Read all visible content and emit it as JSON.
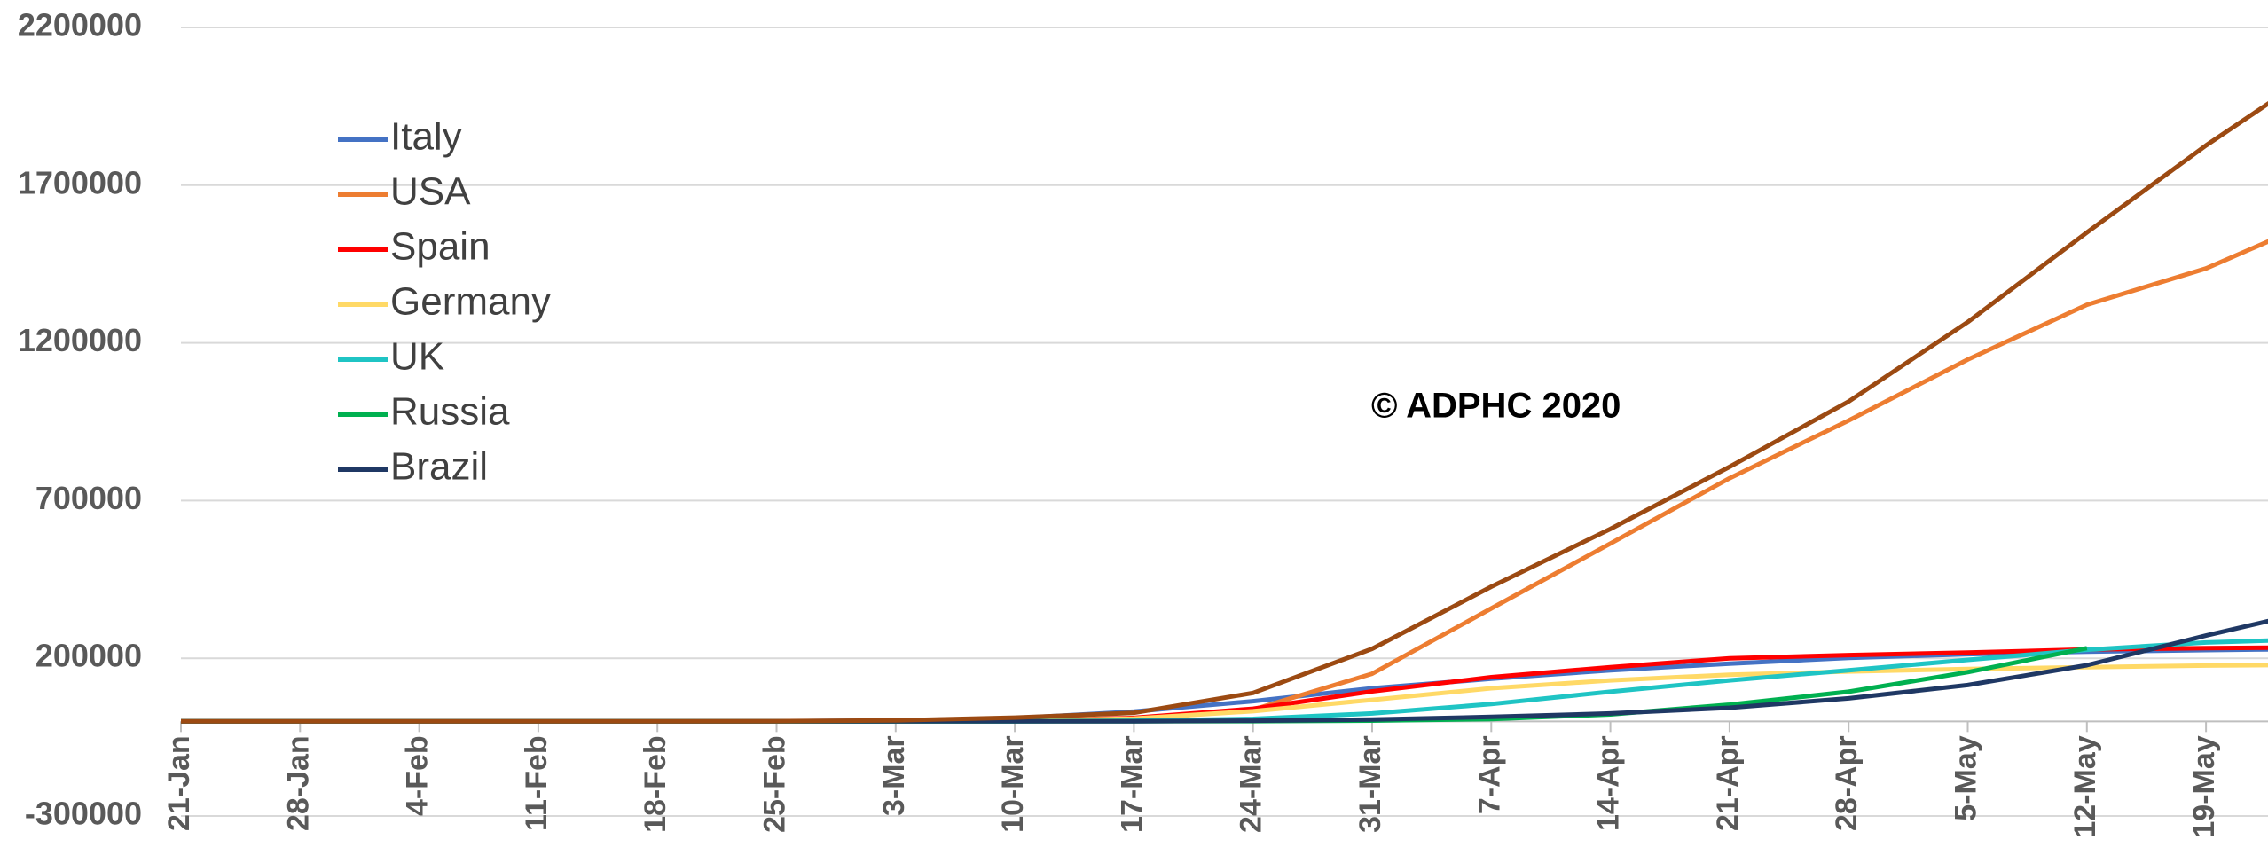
{
  "chart_data": {
    "type": "line",
    "annotation": "© ADPHC 2020",
    "categories": [
      "21-Jan",
      "28-Jan",
      "4-Feb",
      "11-Feb",
      "18-Feb",
      "25-Feb",
      "3-Mar",
      "10-Mar",
      "17-Mar",
      "24-Mar",
      "31-Mar",
      "7-Apr",
      "14-Apr",
      "21-Apr",
      "28-Apr",
      "5-May",
      "12-May",
      "19-May",
      null
    ],
    "series": [
      {
        "name": "Italy",
        "color": "#4472c4",
        "values": [
          0,
          0,
          0,
          0,
          0,
          300,
          2500,
          10000,
          31000,
          64000,
          105000,
          135000,
          162000,
          183000,
          201000,
          213000,
          221000,
          226000,
          230000
        ]
      },
      {
        "name": "USA",
        "color": "#ed7d31",
        "values": [
          0,
          0,
          0,
          0,
          0,
          0,
          100,
          1000,
          6000,
          37000,
          151000,
          358000,
          564000,
          771000,
          954000,
          1147000,
          1321000,
          1436000,
          1600000
        ]
      },
      {
        "name": "Spain",
        "color": "#ff0000",
        "values": [
          0,
          0,
          0,
          0,
          0,
          0,
          200,
          1700,
          11000,
          40000,
          95000,
          140000,
          172000,
          200000,
          210000,
          218000,
          228000,
          232000,
          235000
        ]
      },
      {
        "name": "Germany",
        "color": "#ffd966",
        "values": [
          0,
          0,
          0,
          0,
          0,
          0,
          200,
          1500,
          9000,
          32000,
          68000,
          105000,
          130000,
          148000,
          158000,
          166000,
          172000,
          177000,
          180000
        ]
      },
      {
        "name": "UK",
        "color": "#1fc4c4",
        "values": [
          0,
          0,
          0,
          0,
          0,
          0,
          50,
          400,
          2000,
          8000,
          25000,
          55000,
          94000,
          130000,
          162000,
          195000,
          227000,
          250000,
          262000
        ]
      },
      {
        "name": "Russia",
        "color": "#00b050",
        "values": [
          0,
          0,
          0,
          0,
          0,
          0,
          0,
          20,
          100,
          500,
          2300,
          7500,
          22000,
          53000,
          94000,
          156000,
          232000,
          null,
          null
        ]
      },
      {
        "name": "Brazil",
        "color": "#1f3864",
        "values": [
          0,
          0,
          0,
          0,
          0,
          0,
          0,
          30,
          300,
          2000,
          5700,
          14000,
          25000,
          43000,
          73000,
          115000,
          178000,
          272000,
          360000
        ]
      },
      {
        "color": "#9c4a12",
        "values": [
          0,
          0,
          0,
          0,
          0,
          500,
          3000,
          12000,
          27000,
          90000,
          230000,
          427000,
          610000,
          807000,
          1014000,
          1266000,
          1550000,
          1826000,
          2080000
        ]
      }
    ],
    "ylim": [
      -300000,
      2200000
    ],
    "yticks": [
      -300000,
      200000,
      700000,
      1200000,
      1700000,
      2200000
    ],
    "grid": true
  }
}
